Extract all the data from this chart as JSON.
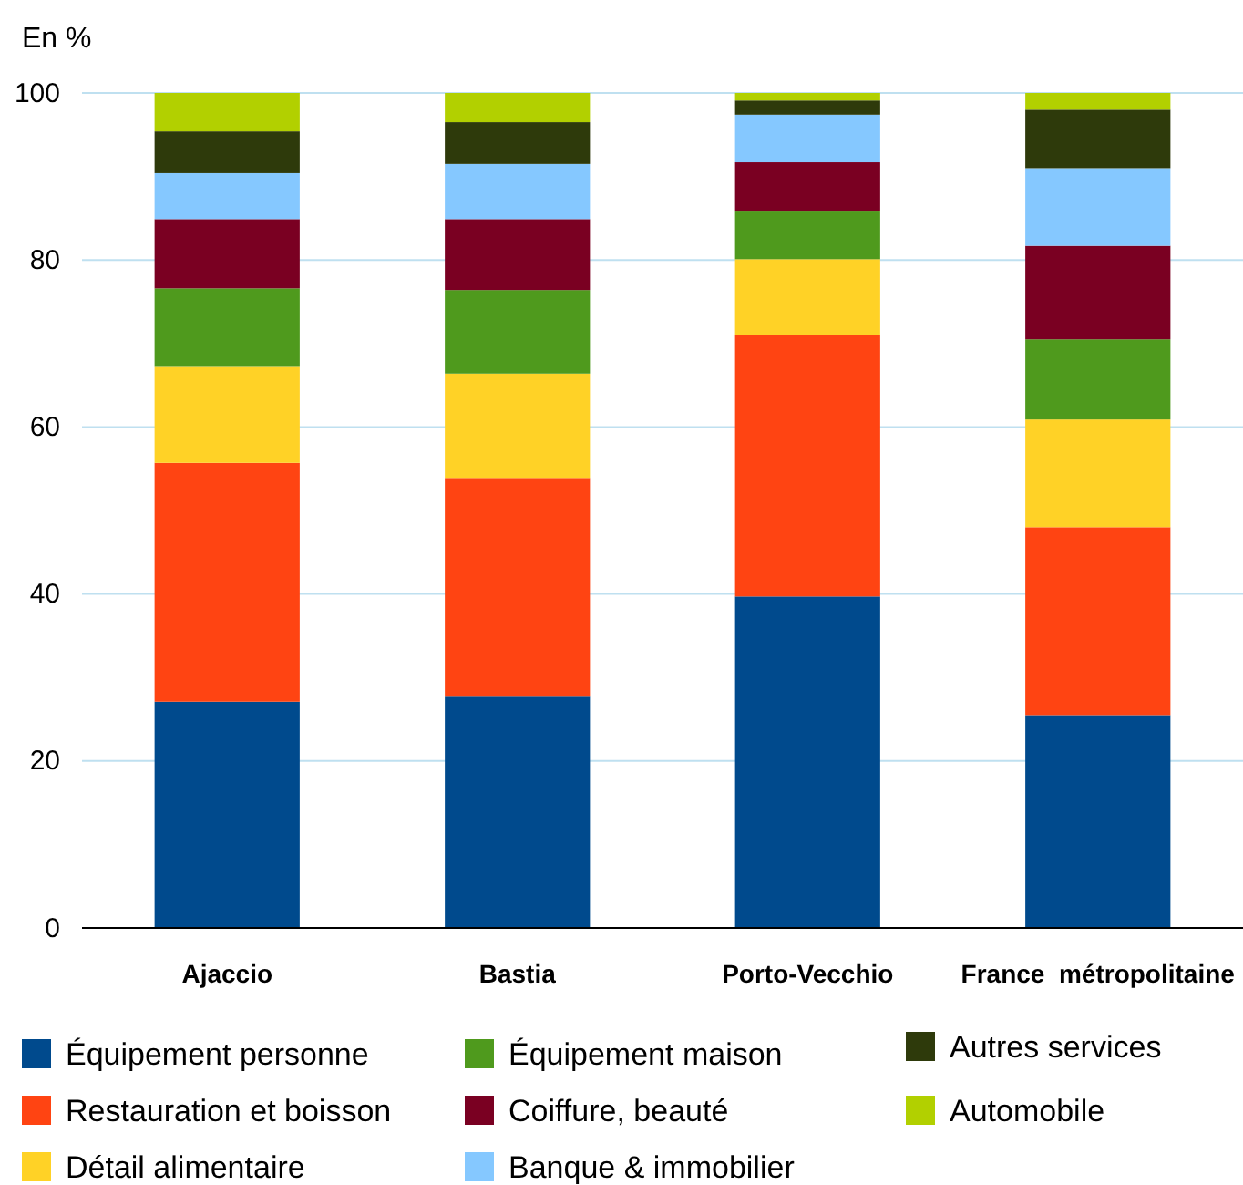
{
  "chart_data": {
    "type": "bar",
    "stacked": true,
    "ylabel": "En %",
    "categories": [
      "Ajaccio",
      "Bastia",
      "Porto-Vecchio",
      "France  métropolitaine"
    ],
    "ylim": [
      0,
      100
    ],
    "yticks": [
      0,
      20,
      40,
      60,
      80,
      100
    ],
    "grid": "y",
    "legend": "bottom",
    "series": [
      {
        "name": "Équipement personne",
        "color": "#004a8d",
        "values": [
          27.1,
          27.7,
          39.7,
          25.5
        ]
      },
      {
        "name": "Restauration et boisson",
        "color": "#ff4412",
        "values": [
          28.6,
          26.2,
          31.3,
          22.5
        ]
      },
      {
        "name": "Détail alimentaire",
        "color": "#ffd226",
        "values": [
          11.5,
          12.5,
          9.1,
          12.9
        ]
      },
      {
        "name": "Équipement maison",
        "color": "#4f9a1d",
        "values": [
          9.4,
          10.0,
          5.7,
          9.6
        ]
      },
      {
        "name": "Coiffure, beauté",
        "color": "#7a0022",
        "values": [
          8.3,
          8.5,
          5.9,
          11.2
        ]
      },
      {
        "name": "Banque & immobilier",
        "color": "#85c8ff",
        "values": [
          5.5,
          6.6,
          5.7,
          9.3
        ]
      },
      {
        "name": "Autres services",
        "color": "#2e3a0b",
        "values": [
          5.0,
          5.0,
          1.7,
          7.0
        ]
      },
      {
        "name": "Automobile",
        "color": "#b2d000",
        "values": [
          4.6,
          3.5,
          0.9,
          2.0
        ]
      }
    ]
  }
}
